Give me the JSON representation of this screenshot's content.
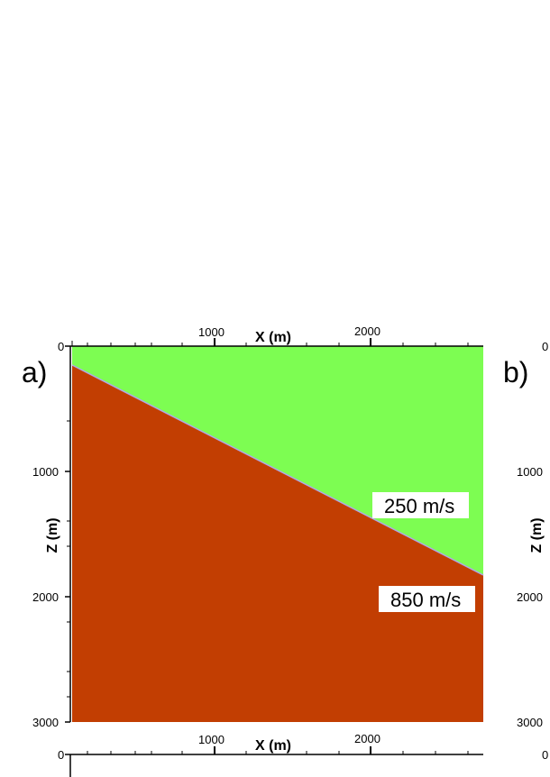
{
  "figure": {
    "panel_a": {
      "letter": "a)",
      "x_axis_title": "X (m)",
      "z_axis_title": "Z (m)",
      "x_ticks": [
        "1000",
        "2000"
      ],
      "z_ticks": [
        "0",
        "1000",
        "2000",
        "3000"
      ],
      "layers": [
        {
          "label": "250 m/s",
          "color": "#7dfd52"
        },
        {
          "label": "850 m/s",
          "color": "#c23e02"
        }
      ],
      "interface_color": "#b0a8e8"
    },
    "panel_b": {
      "letter": "b)",
      "z_axis_title": "Z (m)",
      "z_ticks": [
        "0",
        "1000",
        "2000",
        "3000"
      ]
    },
    "panel_c_partial": {
      "x_axis_title": "X (m)",
      "x_ticks": [
        "1000",
        "2000"
      ],
      "z_ticks": [
        "0"
      ]
    }
  }
}
